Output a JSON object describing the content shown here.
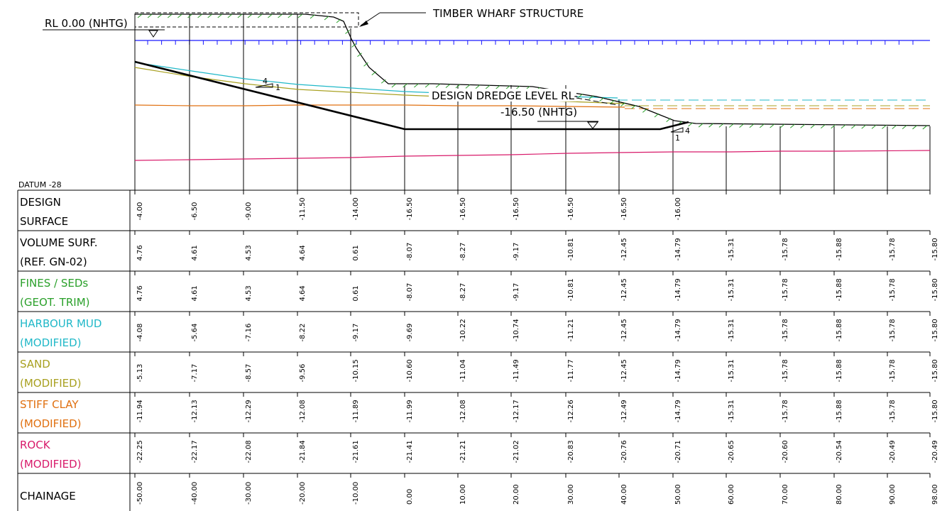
{
  "annotations": {
    "rl_datum": "RL 0.00 (NHTG)",
    "wharf": "TIMBER WHARF STRUCTURE",
    "dredge_line1": "DESIGN DREDGE LEVEL RL-",
    "dredge_line2": "-16.50 (NHTG)",
    "slope_left_v": "4",
    "slope_left_h": "1",
    "slope_right_v": "4",
    "slope_right_h": "1",
    "datum": "DATUM -28"
  },
  "colors": {
    "black": "#000000",
    "water": "#1a1aff",
    "surface_hatch": "#2aa02a",
    "harbour_mud": "#20b8c8",
    "sand": "#a8a020",
    "stiff_clay": "#e07010",
    "rock": "#d81a6a"
  },
  "table": {
    "rows": [
      {
        "line1": "DESIGN",
        "line2": "SURFACE",
        "color": "#000000",
        "values": [
          "-4.00",
          "-6.50",
          "-9.00",
          "-11.50",
          "-14.00",
          "-16.50",
          "-16.50",
          "-16.50",
          "-16.50",
          "-16.50",
          "-16.00"
        ]
      },
      {
        "line1": "VOLUME SURF.",
        "line2": "(REF. GN-02)",
        "color": "#000000",
        "values": [
          "4.76",
          "4.61",
          "4.53",
          "4.64",
          "0.61",
          "-8.07",
          "-8.27",
          "-9.17",
          "-10.81",
          "-12.45",
          "-14.79",
          "-15.31",
          "-15.78",
          "-15.88",
          "-15.78",
          "-15.80"
        ]
      },
      {
        "line1": "FINES / SEDs",
        "line2": "(GEOT. TRIM)",
        "color": "#2aa02a",
        "values": [
          "4.76",
          "4.61",
          "4.53",
          "4.64",
          "0.61",
          "-8.07",
          "-8.27",
          "-9.17",
          "-10.81",
          "-12.45",
          "-14.79",
          "-15.31",
          "-15.78",
          "-15.88",
          "-15.78",
          "-15.80"
        ]
      },
      {
        "line1": "HARBOUR MUD",
        "line2": "(MODIFIED)",
        "color": "#20b8c8",
        "values": [
          "-4.08",
          "-5.64",
          "-7.16",
          "-8.22",
          "-9.17",
          "-9.69",
          "-10.22",
          "-10.74",
          "-11.21",
          "-12.45",
          "-14.79",
          "-15.31",
          "-15.78",
          "-15.88",
          "-15.78",
          "-15.80"
        ]
      },
      {
        "line1": "SAND",
        "line2": "(MODIFIED)",
        "color": "#a8a020",
        "values": [
          "-5.13",
          "-7.17",
          "-8.57",
          "-9.56",
          "-10.15",
          "-10.60",
          "-11.04",
          "-11.49",
          "-11.77",
          "-12.45",
          "-14.79",
          "-15.31",
          "-15.78",
          "-15.88",
          "-15.78",
          "-15.80"
        ]
      },
      {
        "line1": "STIFF CLAY",
        "line2": "(MODIFIED)",
        "color": "#e07010",
        "values": [
          "-11.94",
          "-12.13",
          "-12.29",
          "-12.08",
          "-11.89",
          "-11.99",
          "-12.08",
          "-12.17",
          "-12.26",
          "-12.49",
          "-14.79",
          "-15.31",
          "-15.78",
          "-15.88",
          "-15.78",
          "-15.80"
        ]
      },
      {
        "line1": "ROCK",
        "line2": "(MODIFIED)",
        "color": "#d81a6a",
        "values": [
          "-22.25",
          "-22.17",
          "-22.08",
          "-21.84",
          "-21.61",
          "-21.41",
          "-21.21",
          "-21.02",
          "-20.83",
          "-20.76",
          "-20.71",
          "-20.65",
          "-20.60",
          "-20.54",
          "-20.49",
          "-20.49"
        ]
      },
      {
        "line1": "CHAINAGE",
        "line2": "",
        "color": "#000000",
        "values": [
          "-50.00",
          "-40.00",
          "-30.00",
          "-20.00",
          "-10.00",
          "0.00",
          "10.00",
          "20.00",
          "30.00",
          "40.00",
          "50.00",
          "60.00",
          "70.00",
          "80.00",
          "90.00",
          "98.00"
        ]
      }
    ]
  }
}
